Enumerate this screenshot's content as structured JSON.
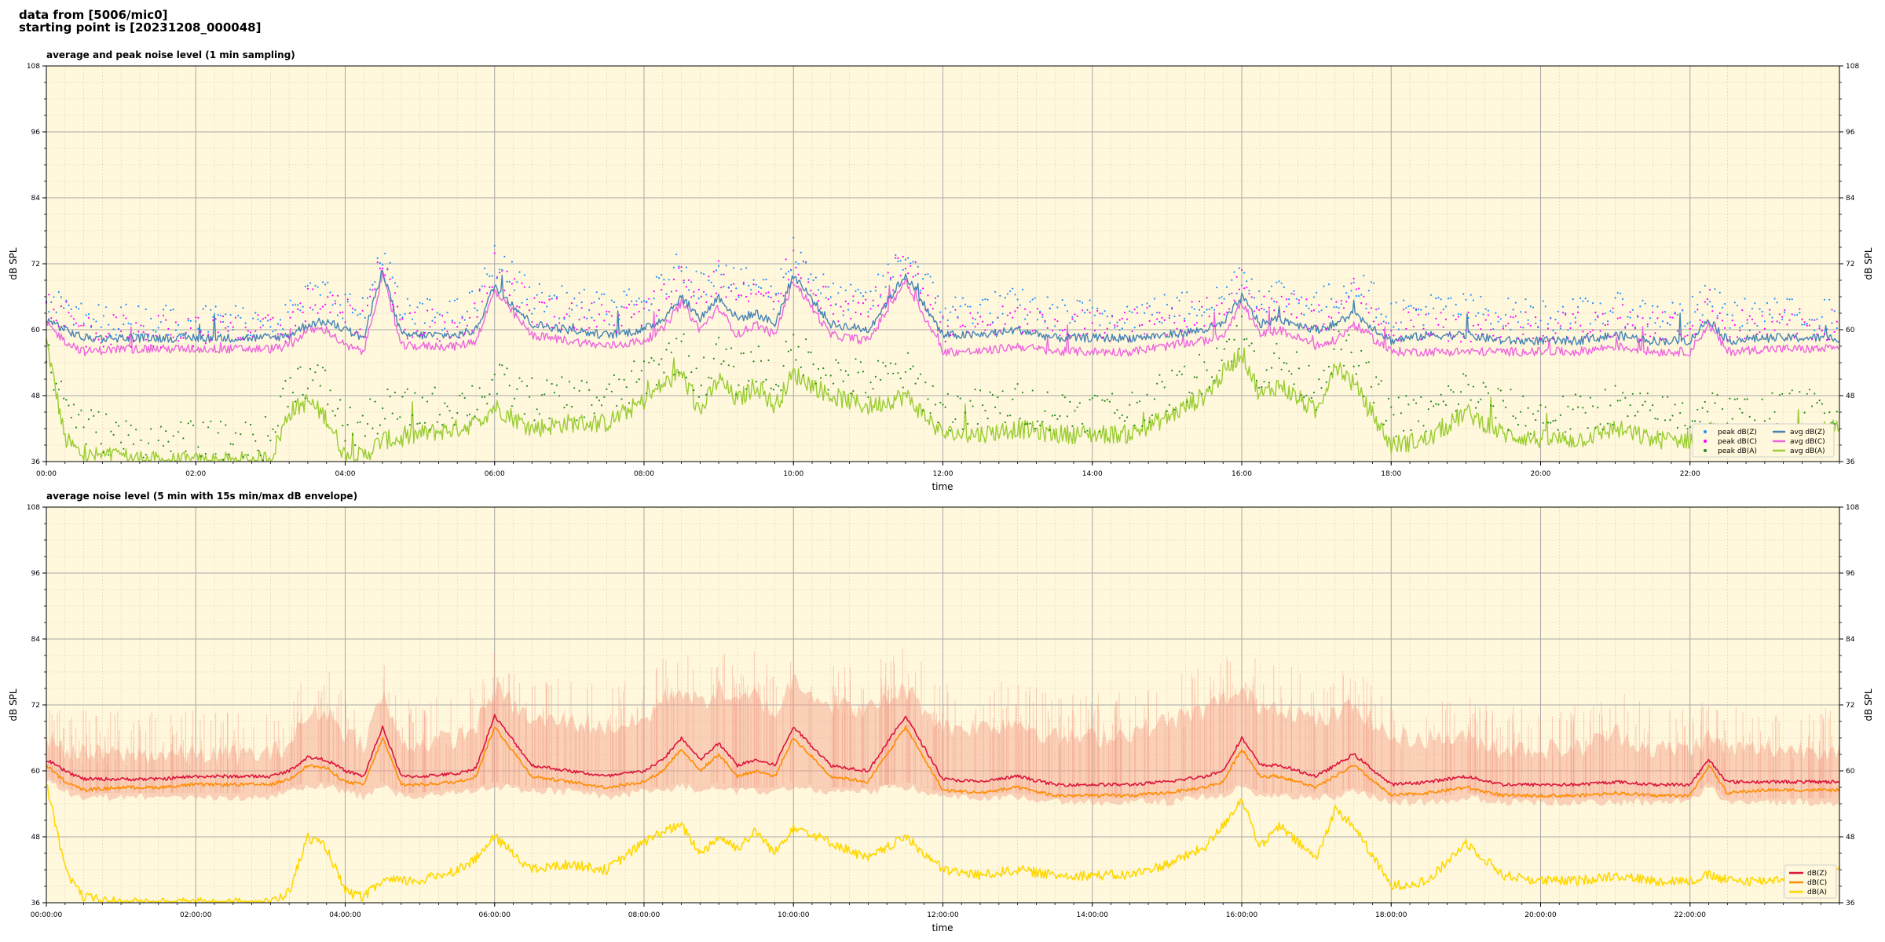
{
  "header": {
    "line1": "data from [5006/mic0]",
    "line2": "starting point is [20231208_000048]"
  },
  "colors": {
    "plot_bg": "#fff8dc",
    "avg_z": "#4682b4",
    "avg_c": "#ee66dd",
    "avg_a": "#9acd32",
    "peak_z": "#1e90ff",
    "peak_c": "#ff00ff",
    "peak_a": "#228b22",
    "z5": "#dc143c",
    "c5": "#ff8c00",
    "a5": "#ffd700",
    "envelope": "#f4a08a"
  },
  "chart_data": [
    {
      "type": "line",
      "title": "average and peak noise level (1 min sampling)",
      "xlabel": "time",
      "ylabel": "dB SPL",
      "xlim": [
        0,
        24
      ],
      "ylim": [
        36,
        108
      ],
      "yticks": [
        "36",
        "48",
        "60",
        "72",
        "84",
        "96",
        "108"
      ],
      "xticks": [
        "00:00",
        "02:00",
        "04:00",
        "06:00",
        "08:00",
        "10:00",
        "12:00",
        "14:00",
        "16:00",
        "18:00",
        "20:00",
        "22:00"
      ],
      "grid": true,
      "legend_position": "lower-right",
      "x": [
        0,
        0.25,
        0.5,
        1,
        1.5,
        2,
        2.5,
        3,
        3.25,
        3.5,
        3.75,
        4,
        4.25,
        4.5,
        4.75,
        5,
        5.5,
        5.75,
        6,
        6.5,
        7,
        7.5,
        8,
        8.25,
        8.5,
        8.75,
        9,
        9.25,
        9.5,
        9.75,
        10,
        10.5,
        11,
        11.5,
        12,
        12.5,
        13,
        13.5,
        14,
        14.5,
        15,
        15.5,
        15.75,
        16,
        16.25,
        16.5,
        17,
        17.25,
        17.5,
        18,
        18.5,
        19,
        19.5,
        20,
        20.5,
        21,
        21.5,
        22,
        22.25,
        22.5,
        23,
        23.5,
        24
      ],
      "series": [
        {
          "name": "avg dB(Z)",
          "kind": "line",
          "values": [
            62,
            60,
            58.5,
            58.5,
            58.5,
            58.5,
            58.5,
            58.5,
            59,
            61,
            61.5,
            60,
            58.5,
            71,
            59,
            59,
            59,
            60,
            68,
            61,
            60,
            59,
            60,
            62,
            66,
            62,
            66,
            62,
            63,
            61,
            70,
            61,
            60,
            70,
            59,
            59,
            60,
            58.5,
            58.5,
            58.5,
            59,
            60,
            61,
            66,
            61,
            62,
            60,
            61,
            63,
            58,
            59,
            59,
            58,
            58,
            58,
            59,
            58,
            58,
            62,
            58,
            58.5,
            58.5,
            58.5
          ]
        },
        {
          "name": "avg dB(C)",
          "kind": "line",
          "values": [
            61,
            58,
            56,
            56.5,
            56.5,
            56.5,
            56.5,
            56.5,
            57,
            60,
            60,
            57,
            56,
            70,
            57,
            57,
            57,
            58,
            67,
            59,
            58,
            57,
            58,
            60,
            65,
            60,
            64,
            59,
            61,
            59,
            69,
            59,
            58,
            69,
            56,
            56,
            57,
            56,
            56,
            56,
            57,
            58,
            59,
            65,
            59,
            60,
            57,
            58,
            61,
            56,
            56,
            56,
            56,
            56,
            56,
            57,
            56,
            56,
            61,
            56,
            56.5,
            56.5,
            56.5
          ]
        },
        {
          "name": "avg dB(A)",
          "kind": "line",
          "values": [
            58,
            40,
            37,
            37,
            36,
            36,
            36,
            36.5,
            45,
            47,
            44,
            37,
            37,
            40,
            40,
            41,
            42,
            43,
            46,
            42,
            43,
            43,
            47,
            50,
            52,
            45,
            51,
            47,
            50,
            46,
            52,
            48,
            46,
            48,
            41,
            41,
            42,
            41,
            41,
            41,
            44,
            48,
            52,
            56,
            48,
            50,
            45,
            54,
            50,
            39,
            40,
            45,
            41,
            40,
            40,
            42,
            40,
            40,
            42,
            40,
            40.5,
            41,
            42
          ]
        },
        {
          "name": "peak dB(Z)",
          "kind": "dots",
          "values": [
            64,
            62,
            60,
            60,
            60,
            60,
            60,
            60,
            61,
            64,
            65,
            63,
            61,
            73,
            61,
            61,
            61,
            63,
            71,
            64,
            63,
            62,
            63,
            66,
            70,
            66,
            70,
            66,
            67,
            64,
            73,
            64,
            63,
            72,
            62,
            62,
            63,
            61,
            61,
            61,
            62,
            63,
            64,
            69,
            64,
            65,
            63,
            64,
            67,
            61,
            62,
            62,
            61,
            61,
            61,
            62,
            61,
            61,
            64,
            61,
            61,
            61,
            61
          ]
        },
        {
          "name": "peak dB(C)",
          "kind": "dots",
          "values": [
            63,
            61,
            58,
            58,
            58,
            58,
            58,
            58,
            59,
            63,
            63,
            61,
            59,
            72,
            59,
            59,
            59,
            61,
            70,
            62,
            61,
            60,
            61,
            64,
            68,
            64,
            68,
            64,
            65,
            62,
            72,
            62,
            61,
            71,
            59,
            59,
            60,
            59,
            59,
            59,
            60,
            61,
            62,
            68,
            62,
            63,
            60,
            61,
            65,
            59,
            59,
            59,
            59,
            59,
            59,
            60,
            59,
            59,
            63,
            59,
            59,
            59,
            59
          ]
        },
        {
          "name": "peak dB(A)",
          "kind": "dots",
          "values": [
            52,
            45,
            40,
            38,
            37,
            37,
            37,
            38,
            48,
            49,
            47,
            40,
            40,
            43,
            43,
            43,
            44,
            45,
            48,
            45,
            45,
            45,
            49,
            52,
            54,
            48,
            53,
            49,
            52,
            48,
            54,
            50,
            48,
            50,
            43,
            43,
            44,
            43,
            43,
            43,
            46,
            50,
            54,
            57,
            50,
            52,
            47,
            55,
            52,
            42,
            42,
            47,
            43,
            42,
            42,
            44,
            42,
            42,
            44,
            42,
            42,
            43,
            44
          ]
        }
      ],
      "legend": [
        "peak dB(Z)",
        "peak dB(C)",
        "peak dB(A)",
        "avg dB(Z)",
        "avg dB(C)",
        "avg dB(A)"
      ]
    },
    {
      "type": "line",
      "title": "average noise level (5 min with 15s min/max dB envelope)",
      "xlabel": "time",
      "ylabel": "dB SPL",
      "xlim": [
        0,
        24
      ],
      "ylim": [
        36,
        108
      ],
      "yticks": [
        "36",
        "48",
        "60",
        "72",
        "84",
        "96",
        "108"
      ],
      "xticks": [
        "00:00:00",
        "02:00:00",
        "04:00:00",
        "06:00:00",
        "08:00:00",
        "10:00:00",
        "12:00:00",
        "14:00:00",
        "16:00:00",
        "18:00:00",
        "20:00:00",
        "22:00:00"
      ],
      "grid": true,
      "legend_position": "lower-right",
      "x": [
        0,
        0.25,
        0.5,
        1,
        1.5,
        2,
        2.5,
        3,
        3.25,
        3.5,
        3.75,
        4,
        4.25,
        4.5,
        4.75,
        5,
        5.5,
        5.75,
        6,
        6.5,
        7,
        7.5,
        8,
        8.25,
        8.5,
        8.75,
        9,
        9.25,
        9.5,
        9.75,
        10,
        10.5,
        11,
        11.5,
        12,
        12.5,
        13,
        13.5,
        14,
        14.5,
        15,
        15.5,
        15.75,
        16,
        16.25,
        16.5,
        17,
        17.25,
        17.5,
        18,
        18.5,
        19,
        19.5,
        20,
        20.5,
        21,
        21.5,
        22,
        22.25,
        22.5,
        23,
        23.5,
        24
      ],
      "series": [
        {
          "name": "dB(Z)",
          "values": [
            62,
            60,
            58.5,
            58.5,
            58.5,
            59,
            59,
            59,
            60,
            62.5,
            62,
            60,
            59,
            68,
            59,
            59,
            59.5,
            60.5,
            70,
            61,
            60,
            59,
            60,
            62,
            66,
            62,
            65,
            61,
            62,
            61,
            68,
            61,
            60,
            70,
            58.5,
            58,
            59,
            57.5,
            57.5,
            57.5,
            58,
            59,
            60,
            66,
            61,
            61,
            59,
            61,
            63,
            57.5,
            58,
            59,
            57.5,
            57.5,
            57.5,
            58,
            57.5,
            57.5,
            62,
            58,
            58,
            58,
            58
          ]
        },
        {
          "name": "dB(C)",
          "values": [
            61,
            58,
            56.5,
            57,
            57,
            57.5,
            57.5,
            57.5,
            58.5,
            61,
            60.5,
            58,
            57.5,
            66,
            57.5,
            57.5,
            58,
            59,
            68,
            59,
            58,
            57,
            58,
            60,
            64,
            60,
            63,
            59,
            60,
            59,
            66,
            59,
            58,
            68,
            56.5,
            56,
            57,
            55.5,
            55.5,
            55.5,
            56,
            57,
            58,
            64,
            59,
            59,
            57,
            59,
            61,
            55.5,
            56,
            57,
            55.5,
            55.5,
            55.5,
            56,
            55.5,
            55.5,
            61,
            56,
            56.5,
            56.5,
            56.5
          ]
        },
        {
          "name": "dB(A)",
          "values": [
            58,
            42,
            37,
            36,
            36,
            36,
            36,
            36,
            38,
            48,
            46,
            38,
            37,
            40,
            40,
            40,
            42,
            44,
            48,
            42,
            43,
            42,
            47,
            49,
            50,
            45,
            48,
            46,
            49,
            45,
            50,
            47,
            44,
            48,
            42,
            41,
            42,
            41,
            41,
            41,
            43,
            46,
            50,
            55,
            46,
            50,
            44,
            53,
            50,
            39,
            40,
            47,
            41,
            40,
            40,
            41,
            40,
            40,
            41,
            40,
            40,
            41,
            42
          ]
        },
        {
          "name": "envelope max",
          "kind": "band",
          "values": [
            64,
            62,
            61,
            61,
            61,
            61,
            61,
            61,
            63,
            68,
            69,
            65,
            63,
            72,
            63,
            63,
            64,
            66,
            73,
            67,
            67,
            66,
            67,
            71,
            73,
            70,
            73,
            70,
            72,
            68,
            75,
            70,
            69,
            73,
            66,
            66,
            67,
            64,
            64,
            65,
            67,
            69,
            71,
            72,
            70,
            70,
            67,
            68,
            70,
            64,
            64,
            64,
            62,
            62,
            62,
            65,
            62,
            62,
            64,
            62,
            62,
            62,
            62
          ]
        },
        {
          "name": "envelope min",
          "kind": "band",
          "values": [
            59,
            57,
            56,
            56,
            56,
            56,
            56,
            56,
            57,
            58,
            58,
            57,
            56,
            58,
            56,
            56,
            57,
            57,
            58,
            57,
            57,
            56,
            57,
            57,
            58,
            57,
            58,
            57,
            57,
            57,
            58,
            57,
            57,
            58,
            56,
            56,
            56,
            55,
            55,
            55,
            55,
            56,
            56,
            58,
            56,
            56,
            56,
            56,
            57,
            55,
            55,
            56,
            55,
            55,
            55,
            55,
            55,
            55,
            58,
            55,
            55,
            55,
            55
          ]
        }
      ],
      "legend": [
        "dB(Z)",
        "dB(C)",
        "dB(A)"
      ]
    }
  ]
}
